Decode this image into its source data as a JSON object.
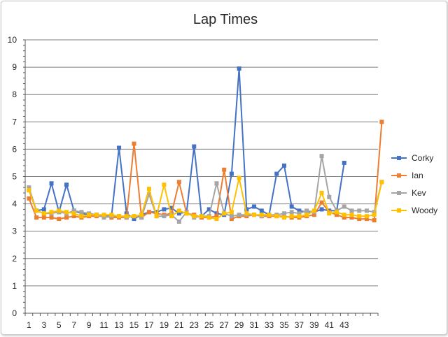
{
  "chart_data": {
    "type": "line",
    "title": "Lap Times",
    "xlabel": "",
    "ylabel": "",
    "ylim": [
      0,
      10
    ],
    "yticks": [
      0,
      1,
      2,
      3,
      4,
      5,
      6,
      7,
      8,
      9,
      10
    ],
    "xlim": [
      1,
      47
    ],
    "xtick_labels": [
      "1",
      "3",
      "5",
      "7",
      "9",
      "11",
      "13",
      "15",
      "17",
      "19",
      "21",
      "23",
      "25",
      "27",
      "29",
      "31",
      "33",
      "35",
      "37",
      "39",
      "41",
      "43"
    ],
    "grid": "horizontal",
    "legend_position": "right",
    "series": [
      {
        "name": "Corky",
        "color": "#4472c4",
        "x_start": 1,
        "values": [
          4.5,
          3.75,
          3.8,
          4.75,
          3.7,
          4.7,
          3.75,
          3.65,
          3.6,
          3.6,
          3.55,
          3.55,
          6.05,
          3.65,
          3.45,
          3.6,
          3.7,
          3.7,
          3.8,
          3.85,
          3.65,
          3.7,
          6.1,
          3.55,
          3.8,
          3.65,
          3.6,
          5.1,
          8.95,
          3.8,
          3.9,
          3.75,
          3.6,
          5.1,
          5.4,
          3.9,
          3.75,
          3.7,
          3.7,
          3.8,
          3.75,
          3.75,
          5.5
        ]
      },
      {
        "name": "Ian",
        "color": "#ed7d31",
        "x_start": 1,
        "values": [
          4.2,
          3.5,
          3.5,
          3.5,
          3.45,
          3.5,
          3.55,
          3.5,
          3.55,
          3.55,
          3.55,
          3.5,
          3.5,
          3.5,
          6.2,
          3.5,
          3.7,
          3.65,
          3.6,
          3.65,
          4.8,
          3.65,
          3.6,
          3.5,
          3.5,
          3.55,
          5.25,
          3.45,
          3.55,
          3.55,
          3.6,
          3.55,
          3.55,
          3.55,
          3.55,
          3.5,
          3.5,
          3.55,
          3.6,
          4.05,
          3.7,
          3.6,
          3.5,
          3.5,
          3.45,
          3.45,
          3.4,
          7.0
        ]
      },
      {
        "name": "Kev",
        "color": "#a5a5a5",
        "x_start": 1,
        "values": [
          4.6,
          3.75,
          3.65,
          3.65,
          3.7,
          3.65,
          3.75,
          3.7,
          3.65,
          3.6,
          3.5,
          3.55,
          3.55,
          3.5,
          3.55,
          3.5,
          4.35,
          3.55,
          3.55,
          3.6,
          3.35,
          3.7,
          3.5,
          3.55,
          3.55,
          4.75,
          3.65,
          3.55,
          3.6,
          3.6,
          3.6,
          3.55,
          3.6,
          3.6,
          3.65,
          3.7,
          3.65,
          3.75,
          3.7,
          5.75,
          4.25,
          3.75,
          3.9,
          3.75,
          3.75,
          3.75,
          3.7,
          4.8
        ]
      },
      {
        "name": "Woody",
        "color": "#ffc000",
        "x_start": 1,
        "values": [
          4.5,
          3.75,
          3.65,
          3.7,
          3.75,
          3.7,
          3.65,
          3.55,
          3.6,
          3.6,
          3.6,
          3.6,
          3.55,
          3.55,
          3.55,
          3.6,
          4.55,
          3.55,
          4.7,
          3.55,
          3.75,
          3.65,
          3.55,
          3.55,
          3.5,
          3.45,
          3.65,
          3.7,
          4.95,
          3.65,
          3.6,
          3.6,
          3.6,
          3.55,
          3.5,
          3.55,
          3.55,
          3.6,
          3.75,
          4.4,
          3.65,
          3.7,
          3.6,
          3.6,
          3.55,
          3.55,
          3.6,
          4.8
        ]
      }
    ]
  }
}
